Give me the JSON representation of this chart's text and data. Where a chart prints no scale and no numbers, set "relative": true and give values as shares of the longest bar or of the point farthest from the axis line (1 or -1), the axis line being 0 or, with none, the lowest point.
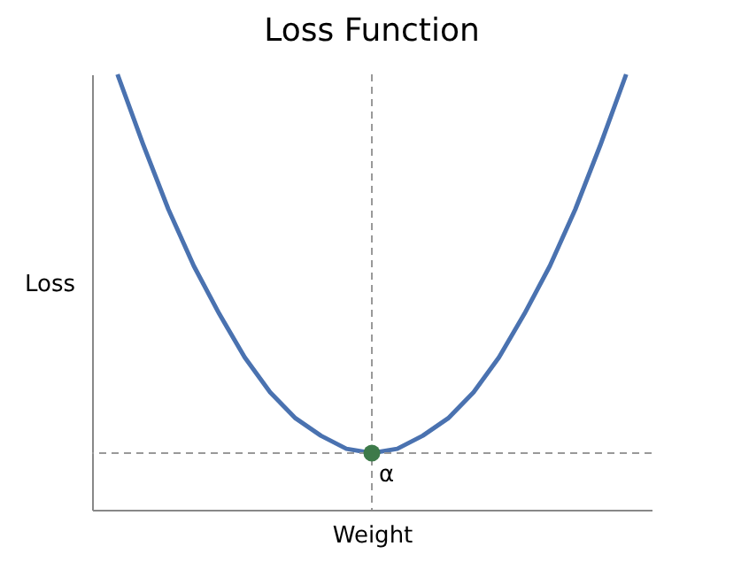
{
  "chart_data": {
    "type": "line",
    "title": "Loss Function",
    "xlabel": "Weight",
    "ylabel": "Loss",
    "relative": true,
    "tick_labels": false,
    "grid": false,
    "marker": "none",
    "line_style": "solid",
    "categories": [
      null,
      null,
      null,
      null,
      null,
      null,
      null,
      null,
      null,
      null,
      null,
      null,
      null,
      null,
      null,
      null,
      null,
      null,
      null,
      null,
      null
    ],
    "series": [
      {
        "color": "#4a72b0",
        "values": [
          1.0,
          0.84,
          0.69,
          0.56,
          0.45,
          0.35,
          0.27,
          0.21,
          0.17,
          0.14,
          0.13,
          0.14,
          0.17,
          0.21,
          0.27,
          0.35,
          0.45,
          0.56,
          0.69,
          0.84,
          1.0
        ]
      }
    ],
    "ref_lines": [
      {
        "axis": "y",
        "value": 0.13,
        "color": "#999999",
        "line_style": "dashed"
      }
    ],
    "annotations": [
      {
        "text": "α",
        "y": 0.13
      }
    ]
  }
}
